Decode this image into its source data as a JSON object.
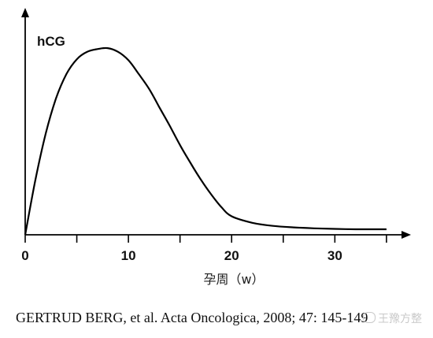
{
  "chart_data": {
    "type": "line",
    "title": "",
    "xlabel": "孕周（w）",
    "ylabel": "hCG",
    "xlim": [
      0,
      36
    ],
    "xticks": [
      0,
      10,
      20,
      30
    ],
    "x_minor_ticks": [
      5,
      15,
      25,
      35
    ],
    "y_ticks_shown": false,
    "grid": false,
    "legend": "none",
    "line_color": "#000000",
    "series": [
      {
        "x": [
          0,
          1,
          2,
          3,
          4,
          5,
          6,
          7,
          8,
          9,
          10,
          11,
          12,
          13,
          14,
          15,
          16,
          17,
          18,
          19,
          20,
          22,
          24,
          26,
          28,
          30,
          32,
          34,
          35
        ],
        "values": [
          0,
          30,
          55,
          74,
          87,
          95,
          99,
          100.5,
          101,
          99,
          94.5,
          87,
          79,
          69,
          59,
          48.5,
          39,
          30,
          22,
          15,
          10,
          6.5,
          4.8,
          4.0,
          3.5,
          3.2,
          3.0,
          3.0,
          3.0
        ]
      }
    ]
  },
  "citation": "GERTRUD BERG, et al. Acta Oncologica, 2008; 47: 145-149",
  "watermark": "王豫方整",
  "watermark_icon": "chat-bubble-icon"
}
